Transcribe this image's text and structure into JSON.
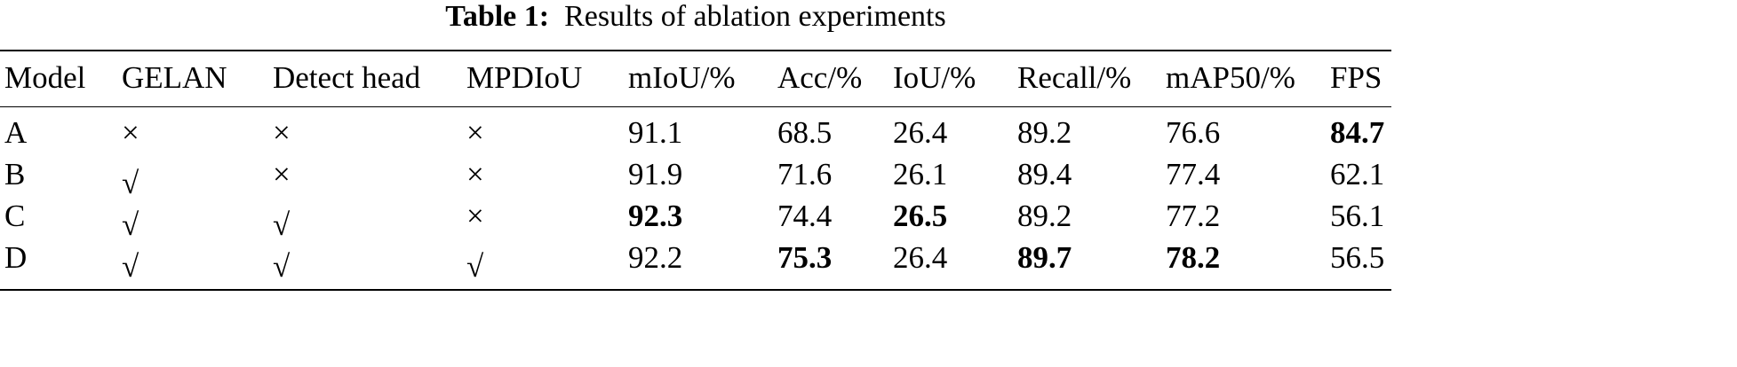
{
  "table": {
    "caption": {
      "label": "Table 1:",
      "text": "Results of ablation experiments"
    },
    "header": [
      "Model",
      "GELAN",
      "Detect head",
      "MPDIoU",
      "mIoU/%",
      "Acc/%",
      "IoU/%",
      "Recall/%",
      "mAP50/%",
      "FPS"
    ],
    "rows": [
      [
        {
          "text": "A"
        },
        {
          "text": "×"
        },
        {
          "text": "×"
        },
        {
          "text": "×"
        },
        {
          "text": "91.1"
        },
        {
          "text": "68.5"
        },
        {
          "text": "26.4"
        },
        {
          "text": "89.2"
        },
        {
          "text": "76.6"
        },
        {
          "text": "84.7",
          "bold": true
        }
      ],
      [
        {
          "text": "B"
        },
        {
          "text": "√"
        },
        {
          "text": "×"
        },
        {
          "text": "×"
        },
        {
          "text": "91.9"
        },
        {
          "text": "71.6"
        },
        {
          "text": "26.1"
        },
        {
          "text": "89.4"
        },
        {
          "text": "77.4"
        },
        {
          "text": "62.1"
        }
      ],
      [
        {
          "text": "C"
        },
        {
          "text": "√"
        },
        {
          "text": "√"
        },
        {
          "text": "×"
        },
        {
          "text": "92.3",
          "bold": true
        },
        {
          "text": "74.4"
        },
        {
          "text": "26.5",
          "bold": true
        },
        {
          "text": "89.2"
        },
        {
          "text": "77.2"
        },
        {
          "text": "56.1"
        }
      ],
      [
        {
          "text": "D"
        },
        {
          "text": "√"
        },
        {
          "text": "√"
        },
        {
          "text": "√"
        },
        {
          "text": "92.2"
        },
        {
          "text": "75.3",
          "bold": true
        },
        {
          "text": "26.4"
        },
        {
          "text": "89.7",
          "bold": true
        },
        {
          "text": "78.2",
          "bold": true
        },
        {
          "text": "56.5"
        }
      ]
    ]
  }
}
